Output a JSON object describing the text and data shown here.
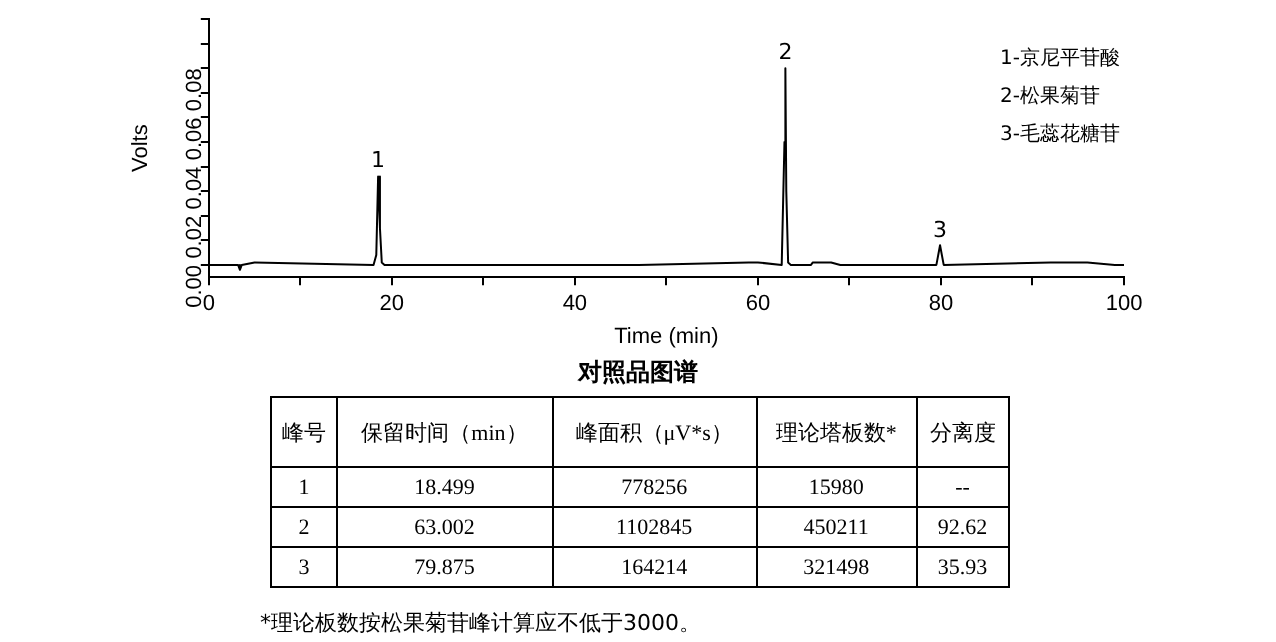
{
  "chart_data": {
    "type": "line",
    "title": "对照品图谱",
    "xlabel": "Time (min)",
    "ylabel": "Volts",
    "x": [
      0,
      3.2,
      3.4,
      3.6,
      5,
      18,
      18.3,
      18.5,
      18.7,
      18.9,
      19.2,
      47,
      59,
      60,
      62.6,
      62.9,
      63.0,
      63.1,
      63.3,
      63.6,
      65.8,
      66,
      68,
      69,
      79.5,
      79.9,
      80.3,
      92,
      96,
      99,
      100
    ],
    "series": [
      {
        "color": "#000000",
        "values": [
          0,
          0,
          -0.002,
          0,
          0.001,
          0,
          0.004,
          0.036,
          0.015,
          0.001,
          0,
          0,
          0.001,
          0.001,
          0,
          0.05,
          0.08,
          0.03,
          0.001,
          0,
          0,
          0.001,
          0.001,
          0,
          0,
          0.008,
          0,
          0.001,
          0.001,
          0,
          0
        ]
      }
    ],
    "xlim": [
      0,
      100
    ],
    "xticks": [
      0,
      {
        "value": 10,
        "label": null
      },
      20,
      {
        "value": 30,
        "label": null
      },
      40,
      {
        "value": 50,
        "label": null
      },
      60,
      {
        "value": 70,
        "label": null
      },
      80,
      {
        "value": 90,
        "label": null
      },
      100
    ],
    "ylim": [
      -0.005,
      0.1
    ],
    "yticks": [
      {
        "value": 0,
        "label": "0.00"
      },
      {
        "value": 0.01,
        "label": null
      },
      {
        "value": 0.02,
        "label": "0.02"
      },
      {
        "value": 0.03,
        "label": null
      },
      {
        "value": 0.04,
        "label": "0.04"
      },
      {
        "value": 0.05,
        "label": null
      },
      {
        "value": 0.06,
        "label": "0.06"
      },
      {
        "value": 0.07,
        "label": null
      },
      {
        "value": 0.08,
        "label": "0.08"
      },
      {
        "value": 0.09,
        "label": null
      },
      {
        "value": 0.1,
        "label": null
      }
    ],
    "grid": false,
    "legend": false,
    "marker": "none",
    "line_style": "solid",
    "annotations": [
      {
        "text": "1",
        "x": 18.5,
        "y": 0.036
      },
      {
        "text": "2",
        "x": 63.0,
        "y": 0.08
      },
      {
        "text": "3",
        "x": 79.9,
        "y": 0.0075
      },
      "1-京尼平苷酸",
      "2-松果菊苷",
      "3-毛蕊花糖苷",
      "峰号",
      "保留时间（min）",
      "峰面积（μV*s）",
      "理论塔板数*",
      "分离度",
      "1",
      "18.499",
      "778256",
      "15980",
      "--",
      "2",
      "63.002",
      "1102845",
      "450211",
      "92.62",
      "3",
      "79.875",
      "164214",
      "321498",
      "35.93",
      "*理论板数按松果菊苷峰计算应不低于3000。"
    ]
  }
}
